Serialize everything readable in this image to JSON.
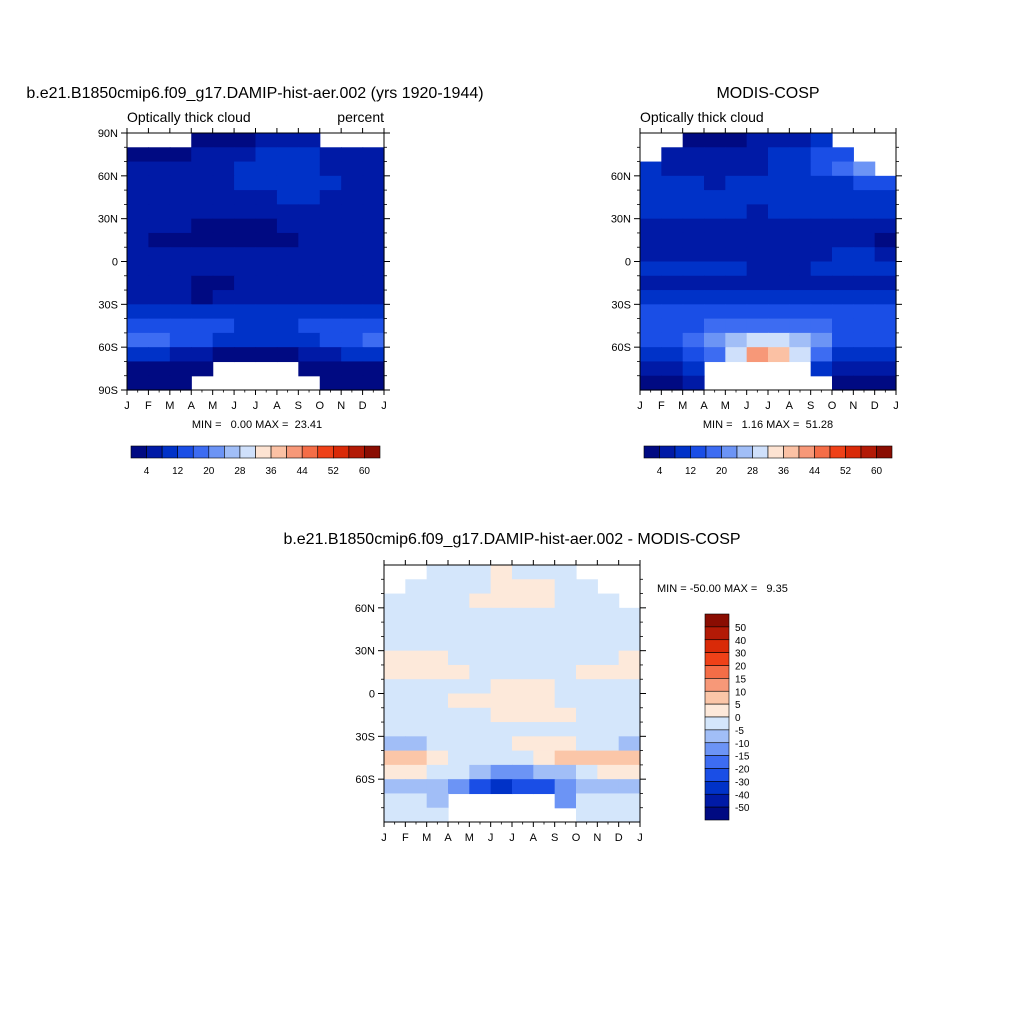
{
  "colors": {
    "seq": [
      "#000a82",
      "#001aa6",
      "#0032c8",
      "#1a4ee6",
      "#3d6cf2",
      "#6c94f5",
      "#a1bef7",
      "#cfe0fb",
      "#fde3d2",
      "#fbc1a4",
      "#f79878",
      "#f46d47",
      "#ef4118",
      "#d92a08",
      "#b31a06",
      "#8a0d02"
    ],
    "diff": [
      "#000a82",
      "#001aa6",
      "#0032c8",
      "#1a4ee6",
      "#3d6cf2",
      "#6c94f5",
      "#a1bef7",
      "#d4e6fb",
      "#fde9da",
      "#fbc6a8",
      "#f79878",
      "#f46d47",
      "#ef4118",
      "#d92a08",
      "#b31a06",
      "#8a0d02"
    ],
    "missing": "#ffffff"
  },
  "chart_data": [
    {
      "type": "heatmap",
      "title": "b.e21.B1850cmip6.f09_g17.DAMIP-hist-aer.002 (yrs 1920-1944)",
      "subtitle_left": "Optically thick cloud",
      "subtitle_right": "percent",
      "x_ticks": [
        "J",
        "F",
        "M",
        "A",
        "M",
        "J",
        "J",
        "A",
        "S",
        "O",
        "N",
        "D",
        "J"
      ],
      "y_ticks": [
        "90N",
        "60N",
        "30N",
        "0",
        "30S",
        "60S",
        "90S"
      ],
      "y_tick_values": [
        90,
        60,
        30,
        0,
        -30,
        -60,
        -90
      ],
      "ylim": [
        -90,
        90
      ],
      "stats": "MIN =   0.00 MAX =  23.41",
      "colorbar_levels": [
        4,
        8,
        12,
        16,
        20,
        24,
        28,
        32,
        36,
        40,
        44,
        48,
        52,
        56,
        60
      ],
      "colorbar_labels": [
        "4",
        "12",
        "20",
        "28",
        "36",
        "44",
        "52",
        "60"
      ],
      "grid_lat_rows": [
        "85N",
        "75N",
        "65N",
        "55N",
        "45N",
        "35N",
        "25N",
        "15N",
        "5N",
        "5S",
        "15S",
        "25S",
        "35S",
        "45S",
        "55S",
        "65S",
        "75S",
        "85S"
      ],
      "values": [
        [
          null,
          null,
          null,
          2,
          2,
          3,
          4,
          5,
          6,
          null,
          null,
          null
        ],
        [
          2,
          1,
          3,
          4,
          5,
          6,
          9,
          10,
          8,
          6,
          7,
          6
        ],
        [
          4,
          4,
          5,
          5,
          6,
          8,
          10,
          11,
          9,
          7,
          6,
          6
        ],
        [
          6,
          6,
          6,
          7,
          7,
          8,
          9,
          10,
          9,
          8,
          7,
          7
        ],
        [
          7,
          7,
          7,
          7,
          6,
          6,
          7,
          8,
          8,
          7,
          7,
          7
        ],
        [
          6,
          5,
          5,
          5,
          5,
          4,
          4,
          5,
          6,
          5,
          5,
          6
        ],
        [
          5,
          4,
          4,
          3,
          3,
          3,
          3,
          4,
          4,
          4,
          5,
          5
        ],
        [
          4,
          3,
          3,
          3,
          3,
          3,
          3,
          3,
          4,
          4,
          4,
          4
        ],
        [
          5,
          5,
          4,
          4,
          4,
          4,
          4,
          4,
          5,
          5,
          5,
          5
        ],
        [
          5,
          5,
          5,
          5,
          4,
          4,
          4,
          4,
          4,
          5,
          5,
          5
        ],
        [
          5,
          5,
          4,
          3,
          3,
          4,
          4,
          5,
          5,
          5,
          5,
          5
        ],
        [
          6,
          5,
          5,
          3,
          4,
          5,
          5,
          6,
          6,
          6,
          6,
          5
        ],
        [
          8,
          8,
          8,
          8,
          8,
          8,
          8,
          8,
          8,
          9,
          9,
          8
        ],
        [
          13,
          13,
          13,
          13,
          12,
          11,
          11,
          11,
          12,
          13,
          13,
          13
        ],
        [
          16,
          16,
          14,
          13,
          11,
          9,
          9,
          10,
          11,
          13,
          14,
          16
        ],
        [
          9,
          8,
          7,
          5,
          3,
          2,
          2,
          3,
          4,
          6,
          8,
          9
        ],
        [
          3,
          3,
          2,
          1,
          null,
          null,
          null,
          null,
          2,
          2,
          3,
          3
        ],
        [
          1,
          1,
          1,
          null,
          null,
          null,
          null,
          null,
          null,
          1,
          1,
          1
        ]
      ]
    },
    {
      "type": "heatmap",
      "title": "MODIS-COSP",
      "subtitle_left": "Optically thick cloud",
      "x_ticks": [
        "J",
        "F",
        "M",
        "A",
        "M",
        "J",
        "J",
        "A",
        "S",
        "O",
        "N",
        "D",
        "J"
      ],
      "y_ticks": [
        "60N",
        "30N",
        "0",
        "30S",
        "60S"
      ],
      "y_tick_values": [
        60,
        30,
        0,
        -30,
        -60
      ],
      "ylim": [
        -90,
        90
      ],
      "stats": "MIN =   1.16 MAX =  51.28",
      "colorbar_levels": [
        4,
        8,
        12,
        16,
        20,
        24,
        28,
        32,
        36,
        40,
        44,
        48,
        52,
        56,
        60
      ],
      "colorbar_labels": [
        "4",
        "12",
        "20",
        "28",
        "36",
        "44",
        "52",
        "60"
      ],
      "values": [
        [
          null,
          null,
          2,
          3,
          3,
          4,
          5,
          6,
          8,
          null,
          null,
          null
        ],
        [
          null,
          5,
          4,
          5,
          5,
          6,
          8,
          10,
          12,
          14,
          null,
          null
        ],
        [
          9,
          7,
          6,
          6,
          6,
          7,
          8,
          9,
          12,
          16,
          20,
          null
        ],
        [
          9,
          8,
          8,
          7,
          8,
          8,
          9,
          9,
          10,
          11,
          13,
          15
        ],
        [
          10,
          9,
          9,
          9,
          9,
          8,
          8,
          9,
          9,
          10,
          10,
          10
        ],
        [
          9,
          9,
          9,
          8,
          8,
          7,
          8,
          8,
          8,
          9,
          9,
          9
        ],
        [
          6,
          6,
          6,
          6,
          6,
          6,
          6,
          6,
          7,
          7,
          7,
          6
        ],
        [
          4,
          4,
          4,
          4,
          4,
          4,
          4,
          5,
          5,
          4,
          4,
          3
        ],
        [
          7,
          7,
          7,
          7,
          6,
          6,
          6,
          6,
          7,
          8,
          8,
          7
        ],
        [
          8,
          8,
          9,
          9,
          8,
          7,
          7,
          7,
          8,
          8,
          8,
          8
        ],
        [
          7,
          7,
          6,
          5,
          4,
          4,
          4,
          4,
          5,
          6,
          7,
          7
        ],
        [
          9,
          9,
          9,
          8,
          8,
          8,
          8,
          8,
          8,
          9,
          9,
          9
        ],
        [
          13,
          12,
          12,
          12,
          12,
          12,
          12,
          12,
          12,
          12,
          12,
          13
        ],
        [
          15,
          15,
          15,
          16,
          17,
          18,
          18,
          18,
          16,
          15,
          15,
          15
        ],
        [
          12,
          14,
          18,
          22,
          26,
          30,
          30,
          26,
          20,
          14,
          12,
          12
        ],
        [
          8,
          10,
          12,
          18,
          30,
          40,
          38,
          28,
          16,
          10,
          8,
          8
        ],
        [
          4,
          5,
          8,
          null,
          null,
          null,
          null,
          null,
          10,
          6,
          4,
          4
        ],
        [
          3,
          3,
          4,
          null,
          null,
          null,
          null,
          null,
          null,
          3,
          3,
          3
        ]
      ]
    },
    {
      "type": "heatmap",
      "title": "b.e21.B1850cmip6.f09_g17.DAMIP-hist-aer.002 - MODIS-COSP",
      "x_ticks": [
        "J",
        "F",
        "M",
        "A",
        "M",
        "J",
        "J",
        "A",
        "S",
        "O",
        "N",
        "D",
        "J"
      ],
      "y_ticks": [
        "60N",
        "30N",
        "0",
        "30S",
        "60S"
      ],
      "y_tick_values": [
        60,
        30,
        0,
        -30,
        -60
      ],
      "ylim": [
        -90,
        90
      ],
      "stats": "MIN = -50.00 MAX =   9.35",
      "colorbar_levels": [
        -50,
        -40,
        -30,
        -20,
        -15,
        -10,
        -5,
        0,
        5,
        10,
        15,
        20,
        30,
        40,
        50
      ],
      "colorbar_labels": [
        "50",
        "40",
        "30",
        "20",
        "15",
        "10",
        "5",
        "0",
        "-5",
        "-10",
        "-15",
        "-20",
        "-30",
        "-40",
        "-50"
      ],
      "values": [
        [
          null,
          null,
          -3,
          -2,
          -3,
          1,
          -1,
          -3,
          -3,
          null,
          null,
          null
        ],
        [
          null,
          -5,
          -2,
          -2,
          -1,
          1,
          2,
          1,
          -3,
          -5,
          null,
          null
        ],
        [
          -3,
          -3,
          -2,
          -2,
          1,
          2,
          3,
          1,
          -3,
          -4,
          -5,
          null
        ],
        [
          -3,
          -3,
          -3,
          -2,
          -2,
          -1,
          -1,
          -2,
          -2,
          -3,
          -4,
          -4
        ],
        [
          -3,
          -3,
          -3,
          -3,
          -3,
          -2,
          -2,
          -2,
          -2,
          -2,
          -3,
          -3
        ],
        [
          -3,
          -3,
          -3,
          -3,
          -3,
          -3,
          -3,
          -3,
          -3,
          -3,
          -3,
          -3
        ],
        [
          3,
          2,
          1,
          -1,
          -2,
          -2,
          -2,
          -2,
          -1,
          -1,
          -2,
          2
        ],
        [
          1,
          1,
          1,
          1,
          -1,
          -1,
          -1,
          -1,
          -1,
          1,
          1,
          1
        ],
        [
          -2,
          -2,
          -2,
          -1,
          -1,
          1,
          1,
          1,
          -1,
          -2,
          -2,
          -2
        ],
        [
          -3,
          -2,
          -2,
          1,
          1,
          2,
          2,
          1,
          -1,
          -2,
          -2,
          -3
        ],
        [
          -3,
          -2,
          -2,
          -2,
          -1,
          1,
          1,
          2,
          2,
          -1,
          -1,
          -2
        ],
        [
          -4,
          -4,
          -3,
          -3,
          -2,
          -2,
          -2,
          -2,
          -3,
          -3,
          -4,
          -4
        ],
        [
          -6,
          -6,
          -5,
          -4,
          -3,
          -2,
          1,
          2,
          2,
          -3,
          -4,
          -6
        ],
        [
          6,
          6,
          3,
          -3,
          -4,
          -5,
          -3,
          2,
          5,
          6,
          6,
          6
        ],
        [
          3,
          2,
          -2,
          -4,
          -10,
          -14,
          -14,
          -10,
          -6,
          -3,
          2,
          3
        ],
        [
          -6,
          -7,
          -8,
          -12,
          -22,
          -32,
          -30,
          -22,
          -12,
          -6,
          -6,
          -6
        ],
        [
          -2,
          -3,
          -8,
          null,
          null,
          null,
          null,
          null,
          -12,
          -4,
          -2,
          -2
        ],
        [
          -2,
          -2,
          -3,
          null,
          null,
          null,
          null,
          null,
          null,
          -3,
          -2,
          -2
        ]
      ]
    }
  ]
}
